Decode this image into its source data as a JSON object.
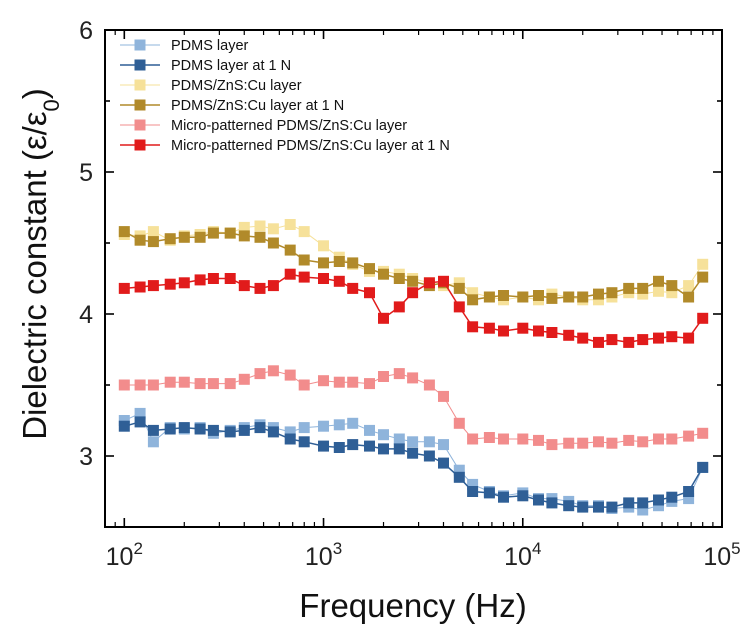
{
  "chart_data": {
    "type": "scatter",
    "xlabel": "Frequency (Hz)",
    "ylabel": "Dielectric constant (ε/ε₀)",
    "ylabel_main": "Dielectric constant (ε/ε",
    "ylabel_sub": "0",
    "ylabel_close": ")",
    "xscale": "log",
    "xlim": [
      80,
      100000
    ],
    "ylim": [
      2.5,
      6
    ],
    "xticks": [
      {
        "value": 100,
        "base": "10",
        "exp": "2"
      },
      {
        "value": 1000,
        "base": "10",
        "exp": "3"
      },
      {
        "value": 10000,
        "base": "10",
        "exp": "4"
      },
      {
        "value": 100000,
        "base": "10",
        "exp": "5"
      }
    ],
    "yticks": [
      3,
      4,
      5,
      6
    ],
    "grid": false,
    "legend_position": "top-left",
    "x": [
      100,
      120,
      140,
      170,
      200,
      240,
      280,
      340,
      400,
      480,
      560,
      680,
      800,
      1000,
      1200,
      1400,
      1700,
      2000,
      2400,
      2800,
      3400,
      4000,
      4800,
      5600,
      6800,
      8000,
      10000,
      12000,
      14000,
      17000,
      20000,
      24000,
      28000,
      34000,
      40000,
      48000,
      56000,
      68000,
      80000
    ],
    "series": [
      {
        "name": "PDMS layer",
        "color": "#8fb4db",
        "line": false,
        "values": [
          3.25,
          3.3,
          3.1,
          3.2,
          3.19,
          3.2,
          3.16,
          3.18,
          3.2,
          3.22,
          3.2,
          3.17,
          3.2,
          3.21,
          3.22,
          3.23,
          3.18,
          3.15,
          3.12,
          3.1,
          3.1,
          3.08,
          2.9,
          2.8,
          2.75,
          2.72,
          2.74,
          2.7,
          2.7,
          2.68,
          2.65,
          2.65,
          2.63,
          2.64,
          2.62,
          2.65,
          2.68,
          2.7,
          2.92
        ]
      },
      {
        "name": "PDMS layer at 1 N",
        "color": "#2f5f96",
        "line": true,
        "values": [
          3.21,
          3.24,
          3.18,
          3.19,
          3.2,
          3.19,
          3.18,
          3.17,
          3.18,
          3.2,
          3.17,
          3.12,
          3.1,
          3.07,
          3.06,
          3.08,
          3.07,
          3.05,
          3.05,
          3.02,
          3.0,
          2.95,
          2.85,
          2.75,
          2.74,
          2.71,
          2.72,
          2.69,
          2.67,
          2.65,
          2.64,
          2.64,
          2.64,
          2.67,
          2.67,
          2.69,
          2.71,
          2.75,
          2.92
        ]
      },
      {
        "name": "PDMS/ZnS:Cu layer",
        "color": "#f6e19a",
        "line": false,
        "values": [
          4.56,
          4.55,
          4.58,
          4.52,
          4.55,
          4.56,
          4.58,
          4.57,
          4.61,
          4.62,
          4.6,
          4.63,
          4.58,
          4.48,
          4.4,
          4.35,
          4.3,
          4.3,
          4.28,
          4.25,
          4.22,
          4.2,
          4.22,
          4.15,
          4.12,
          4.1,
          4.12,
          4.1,
          4.14,
          4.12,
          4.1,
          4.1,
          4.12,
          4.15,
          4.14,
          4.16,
          4.15,
          4.2,
          4.35
        ]
      },
      {
        "name": "PDMS/ZnS:Cu layer at 1 N",
        "color": "#b18a2a",
        "line": true,
        "values": [
          4.58,
          4.52,
          4.51,
          4.53,
          4.54,
          4.54,
          4.57,
          4.57,
          4.55,
          4.54,
          4.5,
          4.45,
          4.38,
          4.36,
          4.37,
          4.36,
          4.32,
          4.28,
          4.25,
          4.23,
          4.2,
          4.22,
          4.18,
          4.1,
          4.12,
          4.13,
          4.12,
          4.13,
          4.11,
          4.12,
          4.12,
          4.14,
          4.15,
          4.18,
          4.18,
          4.23,
          4.2,
          4.12,
          4.26
        ]
      },
      {
        "name": "Micro-patterned PDMS/ZnS:Cu layer",
        "color": "#f28c8c",
        "line": false,
        "values": [
          3.5,
          3.5,
          3.5,
          3.52,
          3.52,
          3.51,
          3.51,
          3.51,
          3.54,
          3.58,
          3.6,
          3.57,
          3.5,
          3.53,
          3.52,
          3.52,
          3.51,
          3.56,
          3.58,
          3.55,
          3.5,
          3.42,
          3.23,
          3.12,
          3.13,
          3.12,
          3.12,
          3.11,
          3.08,
          3.09,
          3.09,
          3.1,
          3.09,
          3.11,
          3.1,
          3.12,
          3.12,
          3.14,
          3.16
        ]
      },
      {
        "name": "Micro-patterned PDMS/ZnS:Cu layer at 1 N",
        "color": "#e11b1b",
        "line": true,
        "values": [
          4.18,
          4.19,
          4.2,
          4.21,
          4.22,
          4.24,
          4.25,
          4.25,
          4.2,
          4.18,
          4.2,
          4.28,
          4.26,
          4.25,
          4.23,
          4.18,
          4.15,
          3.97,
          4.05,
          4.15,
          4.22,
          4.23,
          4.05,
          3.91,
          3.9,
          3.88,
          3.9,
          3.88,
          3.87,
          3.85,
          3.83,
          3.8,
          3.82,
          3.8,
          3.82,
          3.83,
          3.84,
          3.83,
          3.97
        ]
      }
    ]
  }
}
